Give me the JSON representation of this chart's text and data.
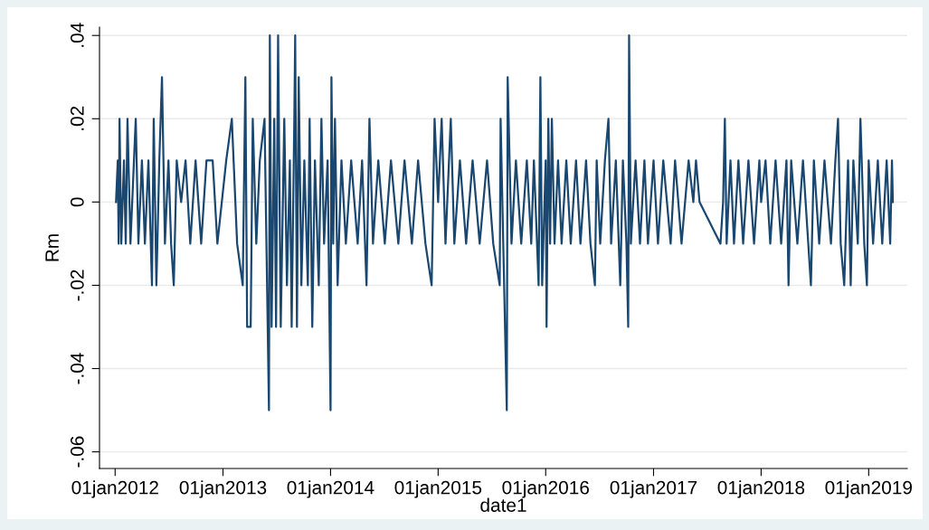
{
  "chart_data": {
    "type": "line",
    "xlabel": "date1",
    "ylabel": "Rm",
    "xlim": [
      "2011-11-09",
      "2019-05-12"
    ],
    "ylim": [
      -0.064,
      0.042
    ],
    "xticks": [
      {
        "value": "2012-01-01",
        "label": "01jan2012"
      },
      {
        "value": "2013-01-01",
        "label": "01jan2013"
      },
      {
        "value": "2014-01-01",
        "label": "01jan2014"
      },
      {
        "value": "2015-01-01",
        "label": "01jan2015"
      },
      {
        "value": "2016-01-01",
        "label": "01jan2016"
      },
      {
        "value": "2017-01-01",
        "label": "01jan2017"
      },
      {
        "value": "2018-01-01",
        "label": "01jan2018"
      },
      {
        "value": "2019-01-01",
        "label": "01jan2019"
      }
    ],
    "yticks": [
      {
        "value": -0.06,
        "label": "-.06"
      },
      {
        "value": -0.04,
        "label": "-.04"
      },
      {
        "value": -0.02,
        "label": "-.02"
      },
      {
        "value": 0,
        "label": "0"
      },
      {
        "value": 0.02,
        "label": ".02"
      },
      {
        "value": 0.04,
        "label": ".04"
      }
    ],
    "grid": "y",
    "legend": false,
    "line_style": "solid",
    "series": [
      {
        "color": "#1a476f",
        "x": [
          "2012-01-04",
          "2012-01-10",
          "2012-01-13",
          "2012-01-16",
          "2012-01-22",
          "2012-01-31",
          "2012-02-06",
          "2012-02-12",
          "2012-02-22",
          "2012-03-05",
          "2012-03-11",
          "2012-03-20",
          "2012-04-01",
          "2012-04-11",
          "2012-04-23",
          "2012-05-05",
          "2012-05-11",
          "2012-05-20",
          "2012-05-30",
          "2012-06-08",
          "2012-06-18",
          "2012-06-30",
          "2012-07-09",
          "2012-07-18",
          "2012-07-28",
          "2012-08-12",
          "2012-08-27",
          "2012-09-12",
          "2012-09-30",
          "2012-10-19",
          "2012-11-06",
          "2012-11-27",
          "2012-12-13",
          "2013-01-12",
          "2013-01-31",
          "2013-02-18",
          "2013-03-09",
          "2013-03-18",
          "2013-03-24",
          "2013-04-05",
          "2013-04-12",
          "2013-04-24",
          "2013-05-06",
          "2013-05-22",
          "2013-06-06",
          "2013-06-09",
          "2013-06-15",
          "2013-06-24",
          "2013-06-30",
          "2013-07-07",
          "2013-07-16",
          "2013-07-28",
          "2013-08-06",
          "2013-08-16",
          "2013-08-22",
          "2013-08-31",
          "2013-09-03",
          "2013-09-09",
          "2013-09-15",
          "2013-09-24",
          "2013-10-04",
          "2013-10-16",
          "2013-10-22",
          "2013-10-31",
          "2013-11-09",
          "2013-11-22",
          "2013-12-01",
          "2013-12-10",
          "2013-12-22",
          "2014-01-01",
          "2014-01-04",
          "2014-01-10",
          "2014-01-16",
          "2014-01-25",
          "2014-02-07",
          "2014-02-22",
          "2014-03-12",
          "2014-04-03",
          "2014-04-18",
          "2014-05-03",
          "2014-05-13",
          "2014-05-25",
          "2014-06-12",
          "2014-07-04",
          "2014-07-25",
          "2014-08-19",
          "2014-09-09",
          "2014-10-04",
          "2014-10-25",
          "2014-11-19",
          "2014-12-10",
          "2014-12-20",
          "2015-01-01",
          "2015-01-13",
          "2015-01-26",
          "2015-02-13",
          "2015-02-25",
          "2015-03-16",
          "2015-04-06",
          "2015-04-28",
          "2015-05-22",
          "2015-06-16",
          "2015-07-07",
          "2015-07-29",
          "2015-08-01",
          "2015-08-16",
          "2015-08-22",
          "2015-08-25",
          "2015-09-07",
          "2015-09-22",
          "2015-10-10",
          "2015-10-29",
          "2015-11-13",
          "2015-11-22",
          "2015-12-08",
          "2015-12-14",
          "2015-12-20",
          "2016-01-01",
          "2016-01-04",
          "2016-01-10",
          "2016-01-16",
          "2016-01-22",
          "2016-01-31",
          "2016-02-12",
          "2016-02-24",
          "2016-03-11",
          "2016-03-26",
          "2016-04-13",
          "2016-04-28",
          "2016-05-17",
          "2016-06-01",
          "2016-06-16",
          "2016-06-22",
          "2016-07-04",
          "2016-07-20",
          "2016-08-01",
          "2016-08-10",
          "2016-08-26",
          "2016-09-10",
          "2016-09-19",
          "2016-10-01",
          "2016-10-07",
          "2016-10-10",
          "2016-10-16",
          "2016-11-01",
          "2016-11-16",
          "2016-12-01",
          "2016-12-13",
          "2017-01-01",
          "2017-01-16",
          "2017-02-03",
          "2017-02-28",
          "2017-03-15",
          "2017-04-06",
          "2017-04-30",
          "2017-05-16",
          "2017-05-25",
          "2017-06-06",
          "2017-08-16",
          "2017-08-25",
          "2017-08-31",
          "2017-09-06",
          "2017-09-19",
          "2017-10-01",
          "2017-10-16",
          "2017-11-01",
          "2017-11-19",
          "2017-12-08",
          "2017-12-26",
          "2018-01-01",
          "2018-01-16",
          "2018-02-01",
          "2018-02-19",
          "2018-03-10",
          "2018-03-28",
          "2018-04-04",
          "2018-04-13",
          "2018-05-04",
          "2018-05-23",
          "2018-06-10",
          "2018-06-19",
          "2018-06-29",
          "2018-07-17",
          "2018-08-04",
          "2018-08-26",
          "2018-09-10",
          "2018-09-19",
          "2018-09-28",
          "2018-10-10",
          "2018-10-23",
          "2018-11-01",
          "2018-11-10",
          "2018-11-25",
          "2018-12-04",
          "2018-12-17",
          "2018-12-26",
          "2019-01-01",
          "2019-01-16",
          "2019-02-01",
          "2019-02-16",
          "2019-03-03",
          "2019-03-15",
          "2019-03-21",
          "2019-03-24"
        ],
        "values": [
          0,
          0.01,
          -0.01,
          0.02,
          -0.01,
          0.01,
          -0.01,
          0.02,
          -0.01,
          0.01,
          0.02,
          -0.01,
          0.01,
          -0.01,
          0.01,
          -0.02,
          0.02,
          -0.02,
          0.01,
          0.03,
          -0.01,
          0.01,
          -0.01,
          -0.02,
          0.01,
          0,
          0.01,
          -0.01,
          0.01,
          -0.01,
          0.01,
          0.01,
          -0.01,
          0.01,
          0.02,
          -0.01,
          -0.02,
          0.03,
          -0.03,
          -0.03,
          0.02,
          -0.01,
          0.01,
          0.02,
          -0.05,
          0.04,
          -0.03,
          0.02,
          -0.03,
          0.04,
          -0.03,
          0.02,
          -0.02,
          0.01,
          -0.03,
          0.02,
          0.04,
          -0.03,
          0.03,
          -0.02,
          0.01,
          -0.02,
          0.02,
          -0.03,
          0.01,
          -0.02,
          0.02,
          -0.01,
          0.01,
          -0.05,
          0.03,
          -0.01,
          0.02,
          -0.02,
          0.01,
          -0.01,
          0.01,
          -0.01,
          0.01,
          -0.02,
          0.02,
          -0.01,
          0.01,
          -0.01,
          0.01,
          -0.01,
          0.01,
          -0.01,
          0.01,
          -0.01,
          -0.02,
          0.02,
          0,
          0.02,
          -0.01,
          0.02,
          -0.01,
          0.01,
          -0.01,
          0.01,
          -0.01,
          0.01,
          -0.01,
          -0.02,
          0.02,
          -0.03,
          -0.05,
          0.03,
          -0.01,
          0.01,
          -0.01,
          0.01,
          -0.01,
          0.01,
          -0.02,
          0.03,
          -0.02,
          0.01,
          -0.03,
          0.02,
          -0.01,
          0.02,
          -0.01,
          0.01,
          -0.01,
          0.01,
          -0.01,
          0.01,
          -0.01,
          0.01,
          -0.01,
          -0.02,
          0.01,
          -0.01,
          0.01,
          0.02,
          -0.01,
          0.01,
          -0.02,
          0.01,
          -0.01,
          -0.03,
          0.04,
          -0.01,
          0.01,
          -0.01,
          0.01,
          -0.01,
          0.01,
          -0.01,
          0.01,
          -0.01,
          0.01,
          -0.01,
          0.01,
          0,
          0.01,
          0,
          -0.01,
          0,
          0.02,
          -0.01,
          0.01,
          -0.01,
          0.01,
          -0.01,
          0.01,
          -0.01,
          0.01,
          0,
          0.01,
          -0.01,
          0.01,
          -0.01,
          0.01,
          -0.02,
          0.01,
          -0.01,
          0.01,
          -0.01,
          -0.02,
          0.01,
          -0.01,
          0.01,
          -0.01,
          0.01,
          0.02,
          -0.01,
          -0.02,
          0.01,
          -0.02,
          0.01,
          -0.01,
          0.02,
          -0.01,
          -0.02,
          0.01,
          -0.01,
          0.01,
          -0.01,
          0.01,
          -0.01,
          0.01,
          0
        ]
      }
    ]
  }
}
